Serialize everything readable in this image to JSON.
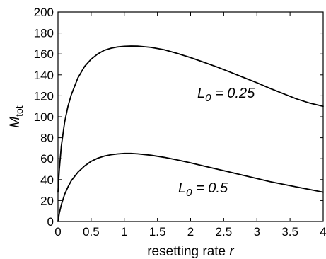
{
  "chart_data": {
    "type": "line",
    "title": "",
    "xlabel": "resetting rate",
    "xlabel_var": "r",
    "ylabel": "M",
    "ylabel_sub": "tot",
    "xlim": [
      0,
      4
    ],
    "ylim": [
      0,
      200
    ],
    "xticks": [
      "0",
      "0.5",
      "1",
      "1.5",
      "2",
      "2.5",
      "3",
      "3.5",
      "4"
    ],
    "yticks": [
      "0",
      "20",
      "40",
      "60",
      "80",
      "100",
      "120",
      "140",
      "160",
      "180",
      "200"
    ],
    "grid": false,
    "legend": "none",
    "line_color": "#000000",
    "series": [
      {
        "annotation_prefix": "L",
        "annotation_sub": "0",
        "annotation_suffix": " = 0.25",
        "x": [
          0,
          0.02,
          0.05,
          0.1,
          0.15,
          0.2,
          0.3,
          0.4,
          0.5,
          0.6,
          0.7,
          0.8,
          0.9,
          1.0,
          1.1,
          1.2,
          1.4,
          1.6,
          1.8,
          2.0,
          2.2,
          2.4,
          2.6,
          2.8,
          3.0,
          3.2,
          3.4,
          3.6,
          3.8,
          4.0
        ],
        "y": [
          28,
          50,
          72,
          95,
          110,
          121,
          137,
          148,
          155,
          160,
          163.5,
          165.5,
          166.7,
          167.3,
          167.6,
          167.5,
          166.3,
          164,
          160.5,
          156.5,
          152,
          147.5,
          142.5,
          137.5,
          132.5,
          127,
          122,
          117,
          113,
          110
        ]
      },
      {
        "annotation_prefix": "L",
        "annotation_sub": "0",
        "annotation_suffix": " = 0.5",
        "x": [
          0,
          0.02,
          0.05,
          0.1,
          0.15,
          0.2,
          0.3,
          0.4,
          0.5,
          0.6,
          0.7,
          0.8,
          0.9,
          1.0,
          1.1,
          1.2,
          1.4,
          1.6,
          1.8,
          2.0,
          2.2,
          2.4,
          2.6,
          2.8,
          3.0,
          3.2,
          3.4,
          3.6,
          3.8,
          4.0
        ],
        "y": [
          0,
          8,
          16,
          26,
          33,
          39,
          47,
          53,
          57.5,
          60.5,
          62.5,
          63.8,
          64.5,
          65,
          65,
          64.6,
          63.3,
          61.3,
          58.8,
          56,
          53,
          50,
          47,
          44,
          41,
          38,
          35.5,
          33,
          30.5,
          28
        ]
      }
    ]
  }
}
